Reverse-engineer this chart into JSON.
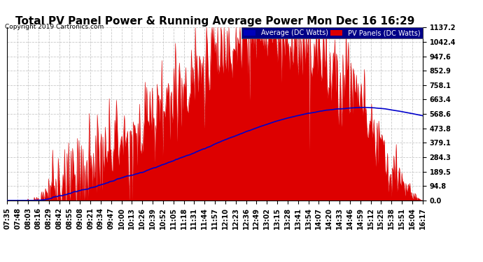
{
  "title": "Total PV Panel Power & Running Average Power Mon Dec 16 16:29",
  "copyright": "Copyright 2019 Cartronics.com",
  "ylabel_right_ticks": [
    0.0,
    94.8,
    189.5,
    284.3,
    379.1,
    473.8,
    568.6,
    663.4,
    758.1,
    852.9,
    947.6,
    1042.4,
    1137.2
  ],
  "ymax": 1137.2,
  "ymin": 0.0,
  "legend_avg_label": "Average (DC Watts)",
  "legend_pv_label": "PV Panels (DC Watts)",
  "legend_avg_bg": "#0000bb",
  "legend_pv_bg": "#dd0000",
  "legend_text_color": "#ffffff",
  "pv_color": "#dd0000",
  "avg_color": "#0000cc",
  "background_color": "#ffffff",
  "plot_bg_color": "#ffffff",
  "grid_color": "#bbbbbb",
  "title_fontsize": 11,
  "copyright_fontsize": 6.5,
  "tick_fontsize": 7,
  "xtick_labels": [
    "07:35",
    "07:48",
    "08:03",
    "08:16",
    "08:29",
    "08:42",
    "08:55",
    "09:08",
    "09:21",
    "09:34",
    "09:47",
    "10:00",
    "10:13",
    "10:26",
    "10:39",
    "10:52",
    "11:05",
    "11:18",
    "11:31",
    "11:44",
    "11:57",
    "12:10",
    "12:23",
    "12:36",
    "12:49",
    "13:02",
    "13:15",
    "13:28",
    "13:41",
    "13:54",
    "14:07",
    "14:20",
    "14:33",
    "14:46",
    "14:59",
    "15:12",
    "15:25",
    "15:38",
    "15:51",
    "16:04",
    "16:17"
  ]
}
